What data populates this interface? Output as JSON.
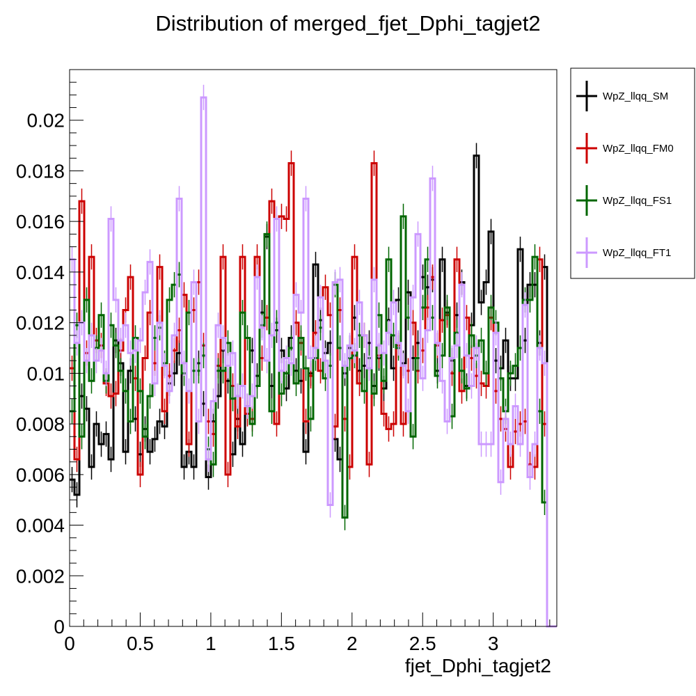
{
  "chart_data": {
    "type": "histogram-step",
    "title": "Distribution of merged_fjet_Dphi_tagjet2",
    "xlabel": "fjet_Dphi_tagjet2",
    "ylabel": "",
    "xlim": [
      0,
      3.45
    ],
    "ylim": [
      0,
      0.022
    ],
    "bins": {
      "start": 0,
      "width": 0.0345,
      "count": 100
    },
    "x_ticks": [
      0,
      0.5,
      1,
      1.5,
      2,
      2.5,
      3
    ],
    "x_tick_labels": [
      "0",
      "0.5",
      "1",
      "1.5",
      "2",
      "2.5",
      "3"
    ],
    "y_ticks": [
      0,
      0.002,
      0.004,
      0.006,
      0.008,
      0.01,
      0.012,
      0.014,
      0.016,
      0.018,
      0.02
    ],
    "y_tick_labels": [
      "0",
      "0.002",
      "0.004",
      "0.006",
      "0.008",
      "0.01",
      "0.012",
      "0.014",
      "0.016",
      "0.018",
      "0.02"
    ],
    "grid": false,
    "legend_position": "right-outside-top",
    "series": [
      {
        "name": "WpZ_llqq_SM",
        "color": "#000000",
        "values": [
          0.0058,
          0.0052,
          0.0091,
          0.0086,
          0.0063,
          0.008,
          0.0072,
          0.0076,
          0.0066,
          0.0113,
          0.0104,
          0.0069,
          0.0101,
          0.0082,
          0.0068,
          0.0078,
          0.0069,
          0.0074,
          0.0081,
          0.0079,
          0.0096,
          0.01,
          0.0108,
          0.0063,
          0.0069,
          0.0063,
          0.0104,
          0.0088,
          0.0059,
          0.0081,
          0.0091,
          0.0109,
          0.0097,
          0.0068,
          0.0082,
          0.0072,
          0.0087,
          0.0109,
          0.0099,
          0.0124,
          0.0154,
          0.0095,
          0.0117,
          0.0109,
          0.0094,
          0.0114,
          0.0101,
          0.0097,
          0.0069,
          0.01,
          0.0143,
          0.0121,
          0.0108,
          0.0112,
          0.0074,
          0.0066,
          0.01,
          0.011,
          0.0122,
          0.0101,
          0.0103,
          0.0112,
          0.0095,
          0.0106,
          0.0094,
          0.0121,
          0.0102,
          0.0129,
          0.0104,
          0.0132,
          0.0106,
          0.0112,
          0.0138,
          0.0134,
          0.0137,
          0.0101,
          0.0145,
          0.0124,
          0.0105,
          0.0123,
          0.0136,
          0.0095,
          0.0119,
          0.0186,
          0.0128,
          0.0136,
          0.0156,
          0.0105,
          0.0102,
          0.0113,
          0.0098,
          0.0098,
          0.0149,
          0.0113,
          0.0135,
          0.0135,
          0.0112,
          0.0142,
          0.0,
          0.0
        ],
        "errors": [
          0.0005,
          0.0005,
          0.0005,
          0.0005,
          0.0005,
          0.0005,
          0.0005,
          0.0005,
          0.0005,
          0.0005,
          0.0005,
          0.0005,
          0.0005,
          0.0005,
          0.0005,
          0.0005,
          0.0005,
          0.0005,
          0.0005,
          0.0005,
          0.0005,
          0.0005,
          0.0005,
          0.0005,
          0.0005,
          0.0005,
          0.0005,
          0.0005,
          0.0005,
          0.0005,
          0.0005,
          0.0005,
          0.0005,
          0.0005,
          0.0005,
          0.0005,
          0.0005,
          0.0005,
          0.0005,
          0.0005,
          0.0005,
          0.0005,
          0.0005,
          0.0005,
          0.0005,
          0.0005,
          0.0005,
          0.0005,
          0.0005,
          0.0005,
          0.0005,
          0.0005,
          0.0005,
          0.0005,
          0.0005,
          0.0005,
          0.0005,
          0.0005,
          0.0005,
          0.0005,
          0.0005,
          0.0005,
          0.0005,
          0.0005,
          0.0005,
          0.0005,
          0.0005,
          0.0005,
          0.0005,
          0.0005,
          0.0005,
          0.0005,
          0.0005,
          0.0005,
          0.0005,
          0.0005,
          0.0005,
          0.0005,
          0.0005,
          0.0005,
          0.0005,
          0.0005,
          0.0005,
          0.0005,
          0.0005,
          0.0005,
          0.0005,
          0.0005,
          0.0005,
          0.0005,
          0.0005,
          0.0005,
          0.0005,
          0.0005,
          0.0005,
          0.0005,
          0.0005,
          0.0005,
          0,
          0
        ]
      },
      {
        "name": "WpZ_llqq_FM0",
        "color": "#cc0000",
        "values": [
          0.0102,
          0.0066,
          0.0168,
          0.0108,
          0.0146,
          0.0113,
          0.0111,
          0.0096,
          0.0091,
          0.0092,
          0.0109,
          0.0125,
          0.0138,
          0.0098,
          0.006,
          0.0106,
          0.0124,
          0.0104,
          0.0142,
          0.0085,
          0.0099,
          0.0109,
          0.0117,
          0.0131,
          0.0072,
          0.0125,
          0.0136,
          0.0111,
          0.0081,
          0.0076,
          0.0103,
          0.0146,
          0.006,
          0.0095,
          0.0079,
          0.0146,
          0.0084,
          0.0082,
          0.0146,
          0.0106,
          0.0122,
          0.0168,
          0.008,
          0.0162,
          0.0161,
          0.0183,
          0.012,
          0.0112,
          0.0081,
          0.0099,
          0.0116,
          0.0101,
          0.0134,
          0.0123,
          0.0079,
          0.0125,
          0.0082,
          0.0063,
          0.0146,
          0.0096,
          0.0115,
          0.0064,
          0.0183,
          0.0107,
          0.0084,
          0.0078,
          0.008,
          0.0111,
          0.008,
          0.0101,
          0.012,
          0.0101,
          0.0109,
          0.0126,
          0.0138,
          0.0111,
          0.0121,
          0.0123,
          0.01,
          0.0145,
          0.0093,
          0.0122,
          0.0106,
          0.0099,
          0.0096,
          0.0095,
          0.0122,
          0.0093,
          0.0082,
          0.0078,
          0.0063,
          0.0077,
          0.008,
          0.0081,
          0.0064,
          0.0063,
          0.0145,
          0.008,
          0.0,
          0.0
        ],
        "errors": [
          0.0005,
          0.0005,
          0.0005,
          0.0005,
          0.0005,
          0.0005,
          0.0005,
          0.0005,
          0.0005,
          0.0005,
          0.0005,
          0.0005,
          0.0005,
          0.0005,
          0.0005,
          0.0005,
          0.0005,
          0.0005,
          0.0005,
          0.0005,
          0.0005,
          0.0005,
          0.0005,
          0.0005,
          0.0005,
          0.0005,
          0.0005,
          0.0005,
          0.0005,
          0.0005,
          0.0005,
          0.0005,
          0.0005,
          0.0005,
          0.0005,
          0.0005,
          0.0005,
          0.0005,
          0.0005,
          0.0005,
          0.0005,
          0.0005,
          0.0005,
          0.0005,
          0.0005,
          0.0005,
          0.0005,
          0.0005,
          0.0005,
          0.0005,
          0.0005,
          0.0005,
          0.0005,
          0.0005,
          0.0005,
          0.0005,
          0.0005,
          0.0005,
          0.0005,
          0.0005,
          0.0005,
          0.0005,
          0.0005,
          0.0005,
          0.0005,
          0.0005,
          0.0005,
          0.0005,
          0.0005,
          0.0005,
          0.0005,
          0.0005,
          0.0005,
          0.0005,
          0.0005,
          0.0005,
          0.0005,
          0.0005,
          0.0005,
          0.0005,
          0.0005,
          0.0005,
          0.0005,
          0.0005,
          0.0005,
          0.0005,
          0.0005,
          0.0005,
          0.0005,
          0.0005,
          0.0005,
          0.0005,
          0.0005,
          0.0005,
          0.0005,
          0.0005,
          0.0005,
          0.0005,
          0,
          0
        ]
      },
      {
        "name": "WpZ_llqq_FS1",
        "color": "#006600",
        "values": [
          0.0085,
          0.0119,
          0.0075,
          0.0129,
          0.0097,
          0.011,
          0.0123,
          0.0097,
          0.0119,
          0.0111,
          0.0101,
          0.0093,
          0.0081,
          0.0114,
          0.0093,
          0.0075,
          0.0091,
          0.0114,
          0.0118,
          0.0104,
          0.0129,
          0.0135,
          0.0139,
          0.01,
          0.0124,
          0.0101,
          0.0101,
          0.0107,
          0.007,
          0.0064,
          0.0101,
          0.0101,
          0.0112,
          0.009,
          0.0091,
          0.0124,
          0.0114,
          0.008,
          0.0095,
          0.0119,
          0.0155,
          0.0085,
          0.012,
          0.0092,
          0.01,
          0.011,
          0.0096,
          0.0114,
          0.0102,
          0.0082,
          0.0106,
          0.0118,
          0.0098,
          0.0103,
          0.0135,
          0.011,
          0.0043,
          0.0106,
          0.0107,
          0.0115,
          0.0093,
          0.0106,
          0.0092,
          0.0123,
          0.0097,
          0.0145,
          0.0115,
          0.011,
          0.0162,
          0.0122,
          0.0075,
          0.0106,
          0.0126,
          0.0145,
          0.0122,
          0.0099,
          0.0107,
          0.0126,
          0.0083,
          0.0116,
          0.0101,
          0.0094,
          0.0115,
          0.0107,
          0.0113,
          0.01,
          0.0126,
          0.012,
          0.0098,
          0.0085,
          0.01,
          0.0103,
          0.011,
          0.0129,
          0.0129,
          0.0146,
          0.0085,
          0.0049,
          0.0,
          0.0
        ],
        "errors": [
          0.0005,
          0.0005,
          0.0005,
          0.0005,
          0.0005,
          0.0005,
          0.0005,
          0.0005,
          0.0005,
          0.0005,
          0.0005,
          0.0005,
          0.0005,
          0.0005,
          0.0005,
          0.0005,
          0.0005,
          0.0005,
          0.0005,
          0.0005,
          0.0005,
          0.0005,
          0.0005,
          0.0005,
          0.0005,
          0.0005,
          0.0005,
          0.0005,
          0.0005,
          0.0005,
          0.0005,
          0.0005,
          0.0005,
          0.0005,
          0.0005,
          0.0005,
          0.0005,
          0.0005,
          0.0005,
          0.0005,
          0.0005,
          0.0005,
          0.0005,
          0.0005,
          0.0005,
          0.0005,
          0.0005,
          0.0005,
          0.0005,
          0.0005,
          0.0005,
          0.0005,
          0.0005,
          0.0005,
          0.0005,
          0.0005,
          0.0005,
          0.0005,
          0.0005,
          0.0005,
          0.0005,
          0.0005,
          0.0005,
          0.0005,
          0.0005,
          0.0005,
          0.0005,
          0.0005,
          0.0005,
          0.0005,
          0.0005,
          0.0005,
          0.0005,
          0.0005,
          0.0005,
          0.0005,
          0.0005,
          0.0005,
          0.0005,
          0.0005,
          0.0005,
          0.0005,
          0.0005,
          0.0005,
          0.0005,
          0.0005,
          0.0005,
          0.0005,
          0.0005,
          0.0005,
          0.0005,
          0.0005,
          0.0005,
          0.0005,
          0.0005,
          0.0005,
          0.0005,
          0.0005,
          0,
          0
        ]
      },
      {
        "name": "WpZ_llqq_FT1",
        "color": "#cc99ff",
        "values": [
          0.0145,
          0.0112,
          0.012,
          0.0105,
          0.0115,
          0.0105,
          0.0109,
          0.01,
          0.0161,
          0.0129,
          0.0113,
          0.0119,
          0.0108,
          0.0109,
          0.0113,
          0.0132,
          0.0144,
          0.0096,
          0.012,
          0.0103,
          0.0093,
          0.0115,
          0.0169,
          0.0104,
          0.0093,
          0.0136,
          0.0081,
          0.0209,
          0.0066,
          0.0089,
          0.0119,
          0.0114,
          0.0103,
          0.0108,
          0.0091,
          0.0095,
          0.0087,
          0.0091,
          0.0138,
          0.0118,
          0.0105,
          0.0115,
          0.0161,
          0.0101,
          0.0106,
          0.0104,
          0.0131,
          0.0124,
          0.0169,
          0.0106,
          0.011,
          0.013,
          0.0105,
          0.0048,
          0.0136,
          0.0137,
          0.0103,
          0.0111,
          0.0109,
          0.0128,
          0.0115,
          0.0102,
          0.0137,
          0.0111,
          0.0108,
          0.0116,
          0.0128,
          0.0112,
          0.0103,
          0.0085,
          0.013,
          0.0155,
          0.0098,
          0.0117,
          0.0177,
          0.0112,
          0.0097,
          0.0081,
          0.0106,
          0.0111,
          0.0135,
          0.0107,
          0.0095,
          0.011,
          0.0072,
          0.0072,
          0.0072,
          0.0116,
          0.0057,
          0.0082,
          0.0072,
          0.0087,
          0.0072,
          0.0127,
          0.0059,
          0.0072,
          0.011,
          0.0104,
          0.0,
          0.0
        ],
        "errors": [
          0.0005,
          0.0005,
          0.0005,
          0.0005,
          0.0005,
          0.0005,
          0.0005,
          0.0005,
          0.0005,
          0.0005,
          0.0005,
          0.0005,
          0.0005,
          0.0005,
          0.0005,
          0.0005,
          0.0005,
          0.0005,
          0.0005,
          0.0005,
          0.0005,
          0.0005,
          0.0005,
          0.0005,
          0.0005,
          0.0005,
          0.0005,
          0.0005,
          0.0005,
          0.0005,
          0.0005,
          0.0005,
          0.0005,
          0.0005,
          0.0005,
          0.0005,
          0.0005,
          0.0005,
          0.0005,
          0.0005,
          0.0005,
          0.0005,
          0.0005,
          0.0005,
          0.0005,
          0.0005,
          0.0005,
          0.0005,
          0.0005,
          0.0005,
          0.0005,
          0.0005,
          0.0005,
          0.0005,
          0.0005,
          0.0005,
          0.0005,
          0.0005,
          0.0005,
          0.0005,
          0.0005,
          0.0005,
          0.0005,
          0.0005,
          0.0005,
          0.0005,
          0.0005,
          0.0005,
          0.0005,
          0.0005,
          0.0005,
          0.0005,
          0.0005,
          0.0005,
          0.0005,
          0.0005,
          0.0005,
          0.0005,
          0.0005,
          0.0005,
          0.0005,
          0.0005,
          0.0005,
          0.0005,
          0.0005,
          0.0005,
          0.0005,
          0.0005,
          0.0005,
          0.0005,
          0.0005,
          0.0005,
          0.0005,
          0.0005,
          0.0005,
          0.0005,
          0.0005,
          0.0005,
          0,
          0
        ]
      }
    ]
  }
}
